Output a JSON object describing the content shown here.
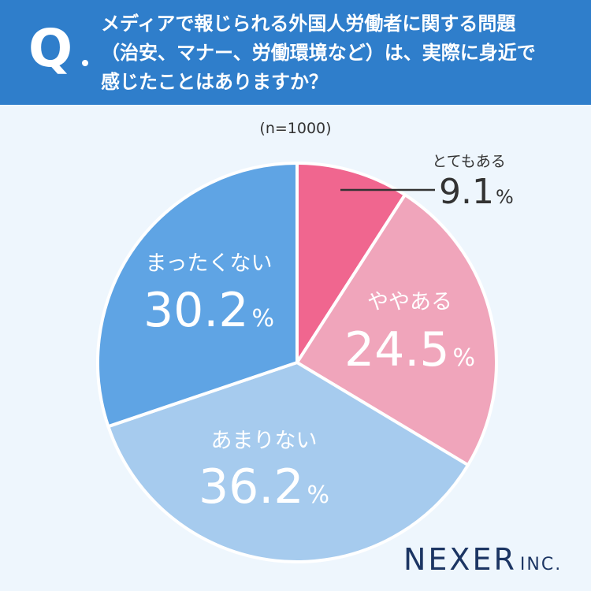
{
  "header": {
    "q_mark": "Q",
    "question_lines": [
      "メディアで報じられる外国人労働者に関する問題",
      "（治安、マナー、労働環境など）は、実際に身近で",
      "感じたことはありますか？"
    ]
  },
  "sample_size": "(n=1000)",
  "logo": {
    "main": "NEXER",
    "sub": "INC."
  },
  "colors": {
    "header_bg": "#2f7ecb",
    "page_bg": "#eef6fd"
  },
  "chart_data": {
    "type": "pie",
    "unit": "%",
    "start_angle_deg": 0,
    "direction": "clockwise",
    "slices": [
      {
        "label": "とてもある",
        "value": 9.1,
        "display": "9.1",
        "color": "#f0668f",
        "label_style": "outside"
      },
      {
        "label": "ややある",
        "value": 24.5,
        "display": "24.5",
        "color": "#f0a5bb",
        "label_style": "inside"
      },
      {
        "label": "あまりない",
        "value": 36.2,
        "display": "36.2",
        "color": "#a6cbee",
        "label_style": "inside"
      },
      {
        "label": "まったくない",
        "value": 30.2,
        "display": "30.2",
        "color": "#5fa4e4",
        "label_style": "inside"
      }
    ]
  }
}
